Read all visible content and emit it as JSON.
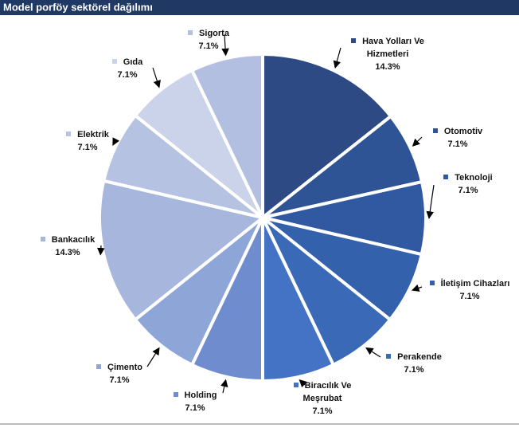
{
  "chart_data": {
    "type": "pie",
    "title": "Model porföy sektörel dağılımı",
    "categories": [
      "Hava Yolları Ve Hizmetleri",
      "Otomotiv",
      "Teknoloji",
      "İletişim Cihazları",
      "Perakende",
      "Biracılık Ve Meşrubat",
      "Holding",
      "Çimento",
      "Bankacılık",
      "Elektrik",
      "Gıda",
      "Sigorta"
    ],
    "values": [
      14.3,
      7.1,
      7.1,
      7.1,
      7.1,
      7.1,
      7.1,
      7.1,
      14.3,
      7.1,
      7.1,
      7.1
    ],
    "value_labels": [
      "14.3%",
      "7.1%",
      "7.1%",
      "7.1%",
      "7.1%",
      "7.1%",
      "7.1%",
      "7.1%",
      "14.3%",
      "7.1%",
      "7.1%",
      "7.1%"
    ],
    "colors": [
      "#2D4A85",
      "#2F5496",
      "#3159A1",
      "#3461AC",
      "#3A69B8",
      "#4472C4",
      "#6F8DCE",
      "#8EA6D7",
      "#A6B6DD",
      "#B5C2E2",
      "#CBD3EA",
      "#B3BFE0"
    ]
  }
}
